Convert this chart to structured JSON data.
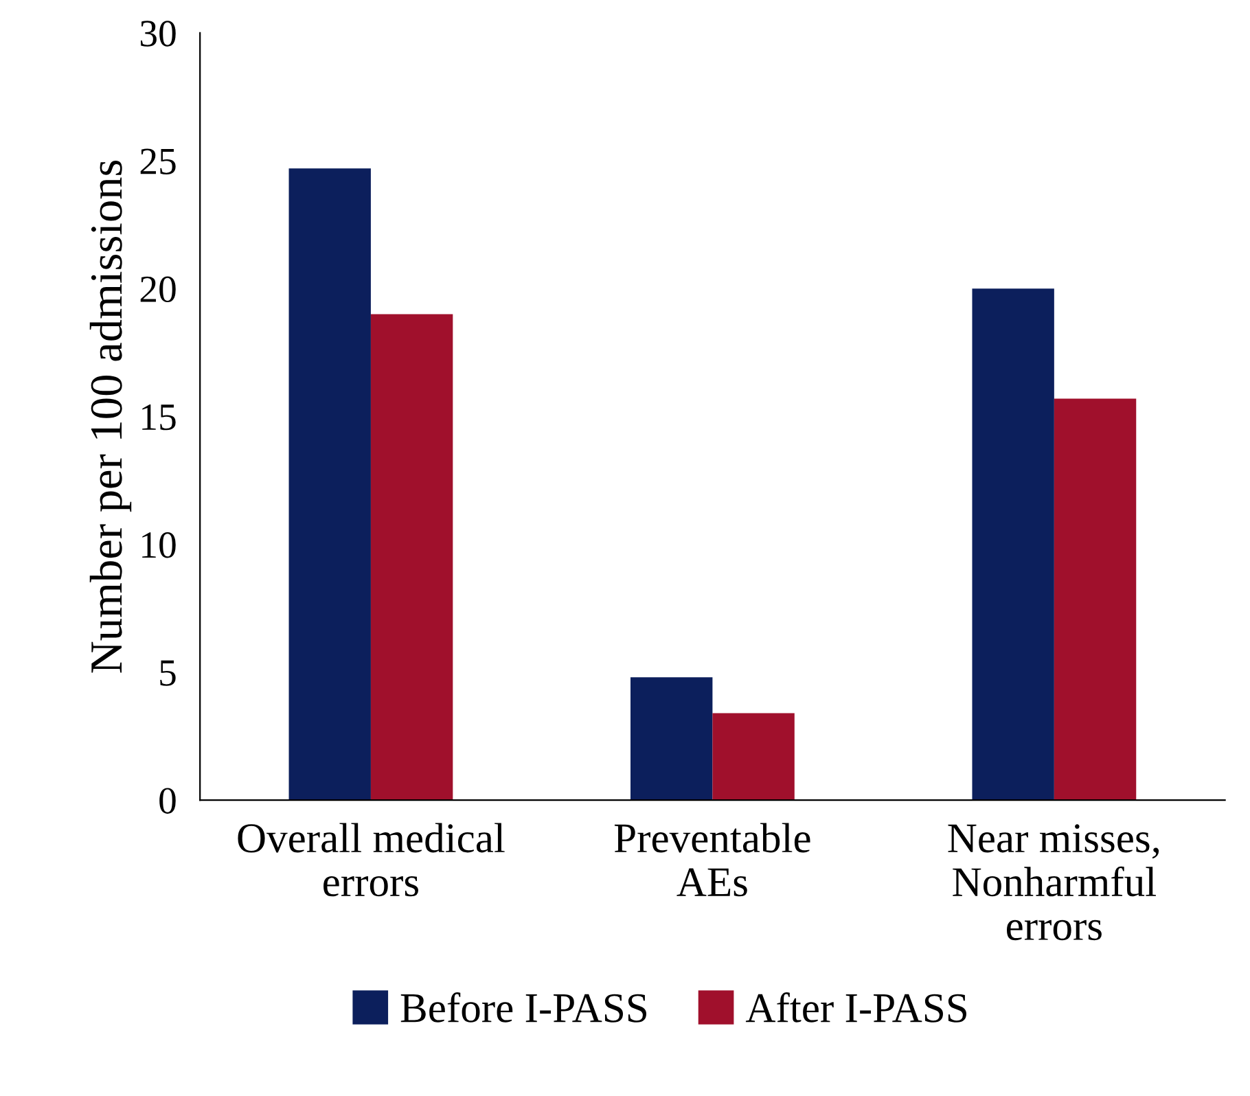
{
  "chart_data": {
    "type": "bar",
    "ylabel": "Number per 100 admissions",
    "categories": [
      "Overall medical\nerrors",
      "Preventable\nAEs",
      "Near misses,\nNonharmful\nerrors"
    ],
    "series": [
      {
        "name": "Before I-PASS",
        "color": "#0c1f5c",
        "values": [
          24.7,
          4.8,
          20.0
        ]
      },
      {
        "name": "After I-PASS",
        "color": "#a0102c",
        "values": [
          19.0,
          3.4,
          15.7
        ]
      }
    ],
    "ylim": [
      0,
      30
    ],
    "yticks": [
      0,
      5,
      10,
      15,
      20,
      25,
      30
    ],
    "grid": false,
    "legend": "bottom"
  }
}
